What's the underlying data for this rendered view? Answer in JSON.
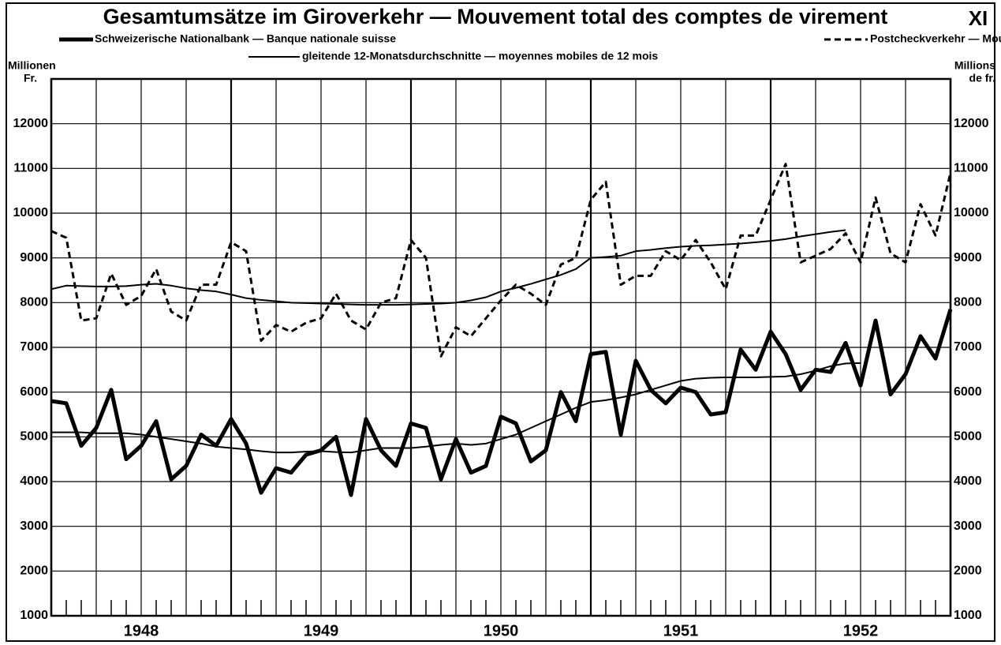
{
  "chart_data": {
    "type": "line",
    "title": "Gesamtumsätze im Giroverkehr — Mouvement total des comptes de virement",
    "plate": "XI",
    "y_label_left": [
      "Millionen",
      "Fr."
    ],
    "y_label_right": [
      "Millions",
      "de fr."
    ],
    "ma_label": "gleitende 12-Monatsdurchschnitte — moyennes mobiles de 12 mois",
    "xlim": [
      0,
      60
    ],
    "xticks": [
      {
        "value": 6,
        "label": "1948"
      },
      {
        "value": 18,
        "label": "1949"
      },
      {
        "value": 30,
        "label": "1950"
      },
      {
        "value": 42,
        "label": "1951"
      },
      {
        "value": 54,
        "label": "1952"
      }
    ],
    "ylim": [
      1000,
      13000
    ],
    "yticks": [
      1000,
      2000,
      3000,
      4000,
      5000,
      6000,
      7000,
      8000,
      9000,
      10000,
      11000,
      12000
    ],
    "grid": true,
    "series": [
      {
        "name": "Schweizerische Nationalbank — Banque nationale suisse",
        "color": "#000000",
        "line_width": 5,
        "dash": "none",
        "values": [
          5800,
          5750,
          4800,
          5200,
          6050,
          4500,
          4800,
          5350,
          4050,
          4350,
          5050,
          4800,
          5400,
          4850,
          3750,
          4300,
          4200,
          4600,
          4700,
          5000,
          3700,
          5400,
          4700,
          4350,
          5300,
          5200,
          4050,
          4950,
          4200,
          4350,
          5450,
          5300,
          4450,
          4700,
          6000,
          5350,
          6850,
          6900,
          5050,
          6700,
          6050,
          5750,
          6100,
          6000,
          5500,
          5550,
          6950,
          6500,
          7350,
          6850,
          6050,
          6500,
          6450,
          7100,
          6150,
          7600,
          5950,
          6400,
          7250,
          6750,
          7850
        ]
      },
      {
        "name": "Postcheckverkehr — Mouvement des comptes de chèques postaux",
        "color": "#000000",
        "line_width": 3,
        "dash": "8 5",
        "values": [
          9600,
          9450,
          7600,
          7650,
          8650,
          7950,
          8150,
          8750,
          7800,
          7600,
          8400,
          8400,
          9350,
          9150,
          7150,
          7500,
          7350,
          7550,
          7650,
          8200,
          7600,
          7400,
          8000,
          8100,
          9400,
          9000,
          6800,
          7450,
          7250,
          7650,
          8050,
          8400,
          8200,
          7950,
          8850,
          9000,
          10300,
          10700,
          8400,
          8600,
          8600,
          9150,
          8950,
          9400,
          8900,
          8300,
          9500,
          9500,
          10300,
          11100,
          8900,
          9050,
          9200,
          9550,
          8900,
          10350,
          9100,
          8900,
          10200,
          9500,
          10900
        ]
      },
      {
        "color": "#000000",
        "line_width": 2,
        "dash": "none",
        "values": [
          5100,
          5100,
          5100,
          5080,
          5080,
          5080,
          5050,
          5000,
          4950,
          4900,
          4850,
          4780,
          4750,
          4720,
          4680,
          4650,
          4650,
          4670,
          4680,
          4660,
          4650,
          4700,
          4750,
          4750,
          4750,
          4780,
          4820,
          4850,
          4820,
          4850,
          4950,
          5050,
          5200,
          5350,
          5500,
          5650,
          5780,
          5820,
          5880,
          5950,
          6050,
          6150,
          6250,
          6300,
          6320,
          6330,
          6330,
          6330,
          6340,
          6350,
          6400,
          6480,
          6580,
          6640,
          6650,
          null,
          null,
          null,
          null,
          null,
          null
        ]
      },
      {
        "color": "#000000",
        "line_width": 2,
        "dash": "none",
        "values": [
          8300,
          8380,
          8370,
          8360,
          8360,
          8370,
          8400,
          8420,
          8380,
          8320,
          8280,
          8250,
          8180,
          8100,
          8060,
          8030,
          8000,
          7990,
          7980,
          7970,
          7960,
          7950,
          7950,
          7950,
          7960,
          7970,
          7980,
          8000,
          8050,
          8120,
          8250,
          8330,
          8420,
          8520,
          8620,
          8750,
          9000,
          9020,
          9050,
          9150,
          9180,
          9220,
          9250,
          9270,
          9280,
          9300,
          9320,
          9350,
          9380,
          9420,
          9480,
          9530,
          9580,
          9620,
          null,
          null,
          null,
          null,
          null,
          null,
          null
        ]
      }
    ]
  }
}
